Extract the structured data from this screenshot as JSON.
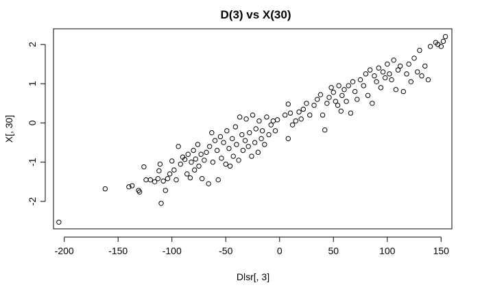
{
  "chart_data": {
    "type": "scatter",
    "title": "D(3) vs X(30)",
    "xlabel": "Dlsr[, 3]",
    "ylabel": "X[, 30]",
    "xlim": [
      -210,
      160
    ],
    "ylim": [
      -2.7,
      2.4
    ],
    "x_ticks": [
      -200,
      -150,
      -100,
      -50,
      0,
      50,
      100,
      150
    ],
    "y_ticks": [
      -2,
      -1,
      0,
      1,
      2
    ],
    "x_tick_labels": [
      "-200",
      "-150",
      "-100",
      "-50",
      "0",
      "50",
      "100",
      "150"
    ],
    "y_tick_labels": [
      "-2",
      "-1",
      "0",
      "1",
      "2"
    ],
    "marker": "open-circle",
    "grid": false,
    "points": [
      [
        -205,
        -2.53
      ],
      [
        -162,
        -1.68
      ],
      [
        -140,
        -1.63
      ],
      [
        -137,
        -1.6
      ],
      [
        -131,
        -1.72
      ],
      [
        -130,
        -1.76
      ],
      [
        -126,
        -1.12
      ],
      [
        -124,
        -1.45
      ],
      [
        -120,
        -1.45
      ],
      [
        -116,
        -1.5
      ],
      [
        -113,
        -1.42
      ],
      [
        -112,
        -1.22
      ],
      [
        -111,
        -1.05
      ],
      [
        -110,
        -2.05
      ],
      [
        -108,
        -1.48
      ],
      [
        -106,
        -1.72
      ],
      [
        -104,
        -1.42
      ],
      [
        -102,
        -1.3
      ],
      [
        -100,
        -0.97
      ],
      [
        -98,
        -1.2
      ],
      [
        -96,
        -1.45
      ],
      [
        -94,
        -0.6
      ],
      [
        -92,
        -1.05
      ],
      [
        -90,
        -0.87
      ],
      [
        -88,
        -0.93
      ],
      [
        -86,
        -1.3
      ],
      [
        -85,
        -0.8
      ],
      [
        -83,
        -1.4
      ],
      [
        -82,
        -1.0
      ],
      [
        -80,
        -0.7
      ],
      [
        -79,
        -1.2
      ],
      [
        -78,
        -0.92
      ],
      [
        -76,
        -0.55
      ],
      [
        -75,
        -1.1
      ],
      [
        -73,
        -0.8
      ],
      [
        -72,
        -1.42
      ],
      [
        -70,
        -0.95
      ],
      [
        -68,
        -0.75
      ],
      [
        -66,
        -1.55
      ],
      [
        -65,
        -0.6
      ],
      [
        -63,
        -0.25
      ],
      [
        -62,
        -1.0
      ],
      [
        -60,
        -0.45
      ],
      [
        -58,
        -0.7
      ],
      [
        -57,
        -1.45
      ],
      [
        -55,
        -0.35
      ],
      [
        -54,
        -0.9
      ],
      [
        -52,
        -0.5
      ],
      [
        -50,
        -1.05
      ],
      [
        -49,
        -0.2
      ],
      [
        -47,
        -0.65
      ],
      [
        -46,
        -1.1
      ],
      [
        -44,
        -0.4
      ],
      [
        -43,
        -0.85
      ],
      [
        -41,
        -0.1
      ],
      [
        -40,
        -0.55
      ],
      [
        -38,
        -0.95
      ],
      [
        -37,
        0.15
      ],
      [
        -35,
        -0.3
      ],
      [
        -34,
        -0.7
      ],
      [
        -32,
        -0.45
      ],
      [
        -31,
        0.1
      ],
      [
        -29,
        -0.6
      ],
      [
        -28,
        -0.25
      ],
      [
        -26,
        -0.85
      ],
      [
        -25,
        0.2
      ],
      [
        -23,
        -0.5
      ],
      [
        -22,
        -0.15
      ],
      [
        -20,
        -0.75
      ],
      [
        -19,
        0.05
      ],
      [
        -17,
        -0.4
      ],
      [
        -16,
        -0.2
      ],
      [
        -14,
        -0.55
      ],
      [
        -12,
        0.15
      ],
      [
        -10,
        -0.3
      ],
      [
        -8,
        -0.05
      ],
      [
        -6,
        0.05
      ],
      [
        -4,
        -0.2
      ],
      [
        -2,
        0.08
      ],
      [
        5,
        0.2
      ],
      [
        8,
        0.48
      ],
      [
        8,
        -0.4
      ],
      [
        10,
        0.25
      ],
      [
        12,
        -0.05
      ],
      [
        15,
        0.05
      ],
      [
        18,
        0.28
      ],
      [
        20,
        0.1
      ],
      [
        22,
        0.35
      ],
      [
        25,
        0.5
      ],
      [
        28,
        0.2
      ],
      [
        32,
        0.45
      ],
      [
        35,
        0.6
      ],
      [
        38,
        0.72
      ],
      [
        40,
        0.2
      ],
      [
        42,
        -0.18
      ],
      [
        44,
        0.5
      ],
      [
        46,
        0.65
      ],
      [
        48,
        0.9
      ],
      [
        50,
        0.78
      ],
      [
        52,
        0.55
      ],
      [
        54,
        0.45
      ],
      [
        55,
        0.95
      ],
      [
        57,
        0.3
      ],
      [
        58,
        0.7
      ],
      [
        60,
        0.85
      ],
      [
        62,
        0.55
      ],
      [
        64,
        0.95
      ],
      [
        66,
        0.25
      ],
      [
        68,
        1.05
      ],
      [
        70,
        0.8
      ],
      [
        72,
        0.6
      ],
      [
        75,
        1.1
      ],
      [
        78,
        0.95
      ],
      [
        80,
        1.25
      ],
      [
        82,
        0.7
      ],
      [
        84,
        1.35
      ],
      [
        86,
        0.5
      ],
      [
        88,
        1.2
      ],
      [
        90,
        1.05
      ],
      [
        92,
        1.4
      ],
      [
        94,
        0.9
      ],
      [
        96,
        1.3
      ],
      [
        98,
        1.15
      ],
      [
        100,
        1.5
      ],
      [
        102,
        1.25
      ],
      [
        104,
        1.1
      ],
      [
        106,
        1.6
      ],
      [
        108,
        0.85
      ],
      [
        110,
        1.35
      ],
      [
        112,
        1.45
      ],
      [
        115,
        0.8
      ],
      [
        118,
        1.25
      ],
      [
        120,
        1.5
      ],
      [
        122,
        1.05
      ],
      [
        125,
        1.65
      ],
      [
        128,
        1.3
      ],
      [
        130,
        1.85
      ],
      [
        132,
        1.2
      ],
      [
        135,
        1.45
      ],
      [
        138,
        1.1
      ],
      [
        140,
        1.95
      ],
      [
        145,
        2.05
      ],
      [
        147,
        2.0
      ],
      [
        150,
        1.95
      ],
      [
        152,
        2.08
      ],
      [
        154,
        2.2
      ]
    ]
  }
}
